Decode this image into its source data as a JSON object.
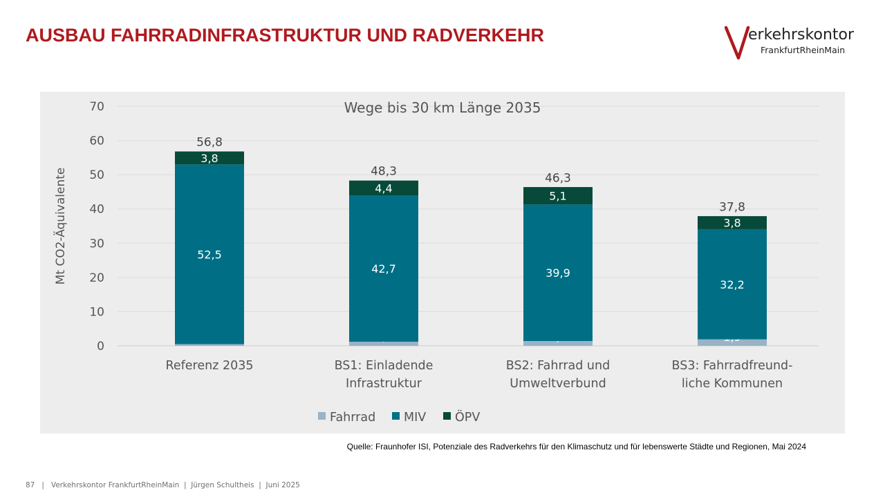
{
  "slide": {
    "title": "AUSBAU FAHRRADINFRASTRUKTUR UND RADVERKEHR",
    "logo_wordmark": "erkehrskontor",
    "logo_subline": "FrankfurtRheinMain",
    "source": "Quelle: Fraunhofer ISI, Potenziale des Radverkehrs für den Klimaschutz und für lebenswerte Städte und Regionen, Mai 2024",
    "footer": {
      "page_number": "87",
      "separator": "|",
      "org": "Verkehrskontor FrankfurtRheinMain",
      "author": "Jürgen Schultheis",
      "date": "Juni 2025"
    }
  },
  "colors": {
    "title_red": "#b0191e",
    "fahrrad": "#9ab3c6",
    "miv": "#006f85",
    "oepv": "#074a3a",
    "panel_bg": "#ededed"
  },
  "chart_data": {
    "type": "bar",
    "stacked": true,
    "title": "Wege bis 30 km Länge 2035",
    "xlabel": "",
    "ylabel": "Mt CO2-Äquivalente",
    "ylim": [
      0,
      70
    ],
    "yticks": [
      "0",
      "10",
      "20",
      "30",
      "40",
      "50",
      "60",
      "70"
    ],
    "grid": true,
    "legend_position": "bottom",
    "categories": [
      [
        "Referenz 2035"
      ],
      [
        "BS1: Einladende",
        "Infrastruktur"
      ],
      [
        "BS2: Fahrrad und",
        "Umweltverbund"
      ],
      [
        "BS3: Fahrradfreund-",
        "liche Kommunen"
      ]
    ],
    "series": [
      {
        "name": "Fahrrad",
        "values": [
          0.5,
          1.2,
          1.4,
          1.9
        ],
        "labels": [
          "0,5",
          "1,2",
          "1,4",
          "1,9"
        ]
      },
      {
        "name": "MIV",
        "values": [
          52.5,
          42.7,
          39.9,
          32.2
        ],
        "labels": [
          "52,5",
          "42,7",
          "39,9",
          "32,2"
        ]
      },
      {
        "name": "ÖPV",
        "values": [
          3.8,
          4.4,
          5.1,
          3.8
        ],
        "labels": [
          "3,8",
          "4,4",
          "5,1",
          "3,8"
        ]
      }
    ],
    "totals": [
      56.8,
      48.3,
      46.3,
      37.8
    ],
    "total_labels": [
      "56,8",
      "48,3",
      "46,3",
      "37,8"
    ]
  }
}
